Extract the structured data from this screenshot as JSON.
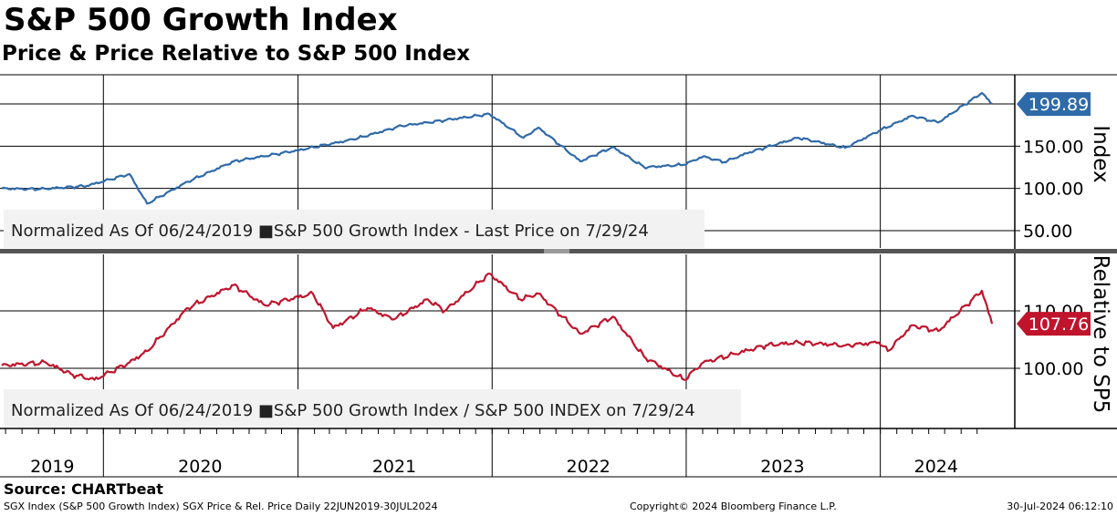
{
  "title": "S&P 500 Growth Index",
  "subtitle": "Price & Price Relative to S&P 500 Index",
  "source": "Source: CHARTbeat",
  "footer": {
    "left": "SGX Index (S&P 500 Growth Index) SGX Price & Rel. Price  Daily 22JUN2019-30JUL2024",
    "middle": "Copyright© 2024 Bloomberg Finance L.P.",
    "right": "30-Jul-2024 06:12:10"
  },
  "colors": {
    "price": "#2f6aa8",
    "relative": "#c0142c",
    "separator": "#555555"
  },
  "chart_data": [
    {
      "type": "line",
      "ylabel": "Index",
      "ylim": [
        50,
        215
      ],
      "yticks": [
        "50.00",
        "100.00",
        "150.00"
      ],
      "legend": "Normalized As Of 06/24/2019  ■S&P 500 Growth Index - Last Price on 7/29/24",
      "legend_placement": "bottom-left",
      "last_value_label": "199.89",
      "x": [
        "2019-06-24",
        "2019-09-01",
        "2019-12-01",
        "2020-02-19",
        "2020-03-23",
        "2020-06-08",
        "2020-09-02",
        "2020-12-31",
        "2021-04-15",
        "2021-07-15",
        "2021-09-02",
        "2021-12-27",
        "2022-03-01",
        "2022-03-29",
        "2022-06-16",
        "2022-08-16",
        "2022-10-14",
        "2022-12-28",
        "2023-02-02",
        "2023-03-13",
        "2023-05-01",
        "2023-07-31",
        "2023-10-27",
        "2023-12-29",
        "2024-03-01",
        "2024-04-19",
        "2024-07-10",
        "2024-07-29"
      ],
      "values": [
        100,
        99,
        103,
        117,
        82,
        108,
        132,
        145,
        158,
        174,
        178,
        188,
        160,
        172,
        132,
        149,
        125,
        128,
        138,
        131,
        143,
        160,
        148,
        168,
        186,
        178,
        213,
        199.89
      ],
      "grid": true
    },
    {
      "type": "line",
      "ylabel": "Relative to SP5",
      "ylim": [
        94,
        121
      ],
      "yticks": [
        "100.00",
        "110.00"
      ],
      "legend": "Normalized As Of 06/24/2019  ■S&P 500 Growth Index / S&P 500 INDEX on 7/29/24",
      "legend_placement": "bottom-left",
      "last_value_label": "107.76",
      "x": [
        "2019-06-24",
        "2019-09-15",
        "2019-11-01",
        "2019-12-15",
        "2020-02-19",
        "2020-03-23",
        "2020-06-08",
        "2020-09-02",
        "2020-10-30",
        "2021-01-29",
        "2021-03-08",
        "2021-05-12",
        "2021-06-30",
        "2021-09-02",
        "2021-10-04",
        "2021-12-27",
        "2022-02-23",
        "2022-03-29",
        "2022-06-16",
        "2022-08-16",
        "2022-10-14",
        "2022-12-28",
        "2023-02-02",
        "2023-05-31",
        "2023-07-31",
        "2023-10-27",
        "2023-12-29",
        "2024-01-15",
        "2024-03-01",
        "2024-04-19",
        "2024-07-10",
        "2024-07-29"
      ],
      "values": [
        100.5,
        101,
        99,
        98,
        101,
        103,
        110.5,
        114.5,
        111,
        113,
        107,
        110.5,
        108.5,
        112,
        110,
        116.5,
        112,
        113,
        106,
        109,
        102,
        98,
        101,
        104,
        104.5,
        104,
        104.5,
        103,
        107.5,
        106.5,
        113.5,
        107.76
      ],
      "grid": true
    }
  ],
  "x_axis": {
    "labels": [
      "2019",
      "2020",
      "2021",
      "2022",
      "2023",
      "2024"
    ]
  }
}
